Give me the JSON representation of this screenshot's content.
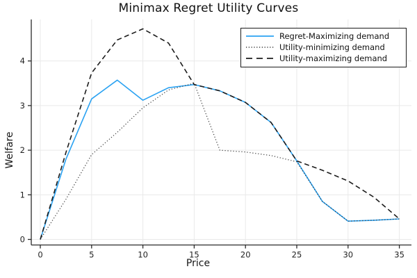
{
  "chart_data": {
    "type": "line",
    "title": "Minimax Regret Utility Curves",
    "xlabel": "Price",
    "ylabel": "Welfare",
    "x": [
      0,
      2.5,
      5,
      7.5,
      10,
      12.5,
      15,
      17.5,
      20,
      22.5,
      25,
      27.5,
      30,
      32.5,
      35
    ],
    "series": [
      {
        "name": "Regret-Maximizing demand",
        "style": "solid",
        "color": "#2aa2f2",
        "values": [
          0,
          1.8,
          3.15,
          3.57,
          3.12,
          3.4,
          3.47,
          3.33,
          3.07,
          2.62,
          1.76,
          0.85,
          0.41,
          0.43,
          0.46
        ]
      },
      {
        "name": "Utility-minimizing demand",
        "style": "dot",
        "color": "#333333",
        "values": [
          0,
          0.9,
          1.9,
          2.4,
          2.95,
          3.35,
          3.5,
          2.0,
          1.96,
          1.88,
          1.74,
          0.85,
          0.41,
          0.43,
          0.46
        ]
      },
      {
        "name": "Utility-maximizing demand",
        "style": "dash",
        "color": "#1c1c1c",
        "values": [
          0,
          1.95,
          3.73,
          4.47,
          4.72,
          4.4,
          3.47,
          3.33,
          3.07,
          2.62,
          1.76,
          1.55,
          1.31,
          0.95,
          0.46
        ]
      }
    ],
    "axes": {
      "x_ticks": [
        0,
        5,
        10,
        15,
        20,
        25,
        30,
        35
      ],
      "y_ticks": [
        0,
        1,
        2,
        3,
        4
      ],
      "xlim": [
        -0.9,
        36.2
      ],
      "ylim": [
        -0.12,
        4.93
      ],
      "grid": true
    },
    "legend": {
      "position": "top-right",
      "border": true
    },
    "colors": {
      "grid": "#e9e9e9",
      "spine": "#2a2a2a",
      "tick_label": "#1f1f1f"
    }
  }
}
